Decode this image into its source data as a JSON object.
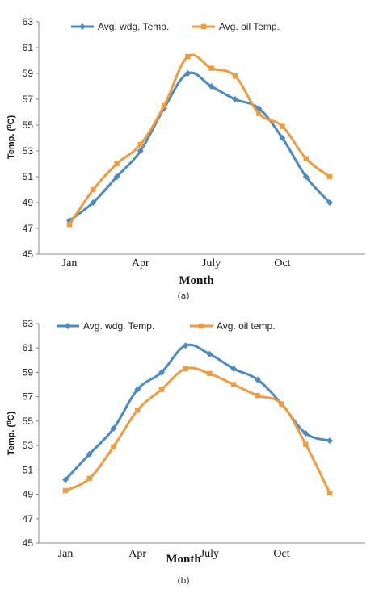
{
  "colors": {
    "wdg": "#4a8bc4",
    "oil": "#f29a3e"
  },
  "chart_data": [
    {
      "type": "line",
      "caption": "(a)",
      "xlabel": "Month",
      "ylabel": "Temp. (⁰C)",
      "ylim": [
        45,
        63
      ],
      "yticks": [
        45,
        47,
        49,
        51,
        53,
        55,
        57,
        59,
        61,
        63
      ],
      "x_tick_labels": [
        "Jan",
        "Apr",
        "July",
        "Oct"
      ],
      "x_tick_positions": [
        1,
        4,
        7,
        10
      ],
      "x": [
        1,
        2,
        3,
        4,
        5,
        6,
        7,
        8,
        9,
        10,
        11,
        12
      ],
      "legend_position": "top",
      "series": [
        {
          "name": "Avg. wdg. Temp.",
          "marker": "diamond",
          "color": "#4a8bc4",
          "values": [
            47.6,
            49.0,
            51.0,
            53.0,
            56.3,
            59.0,
            58.0,
            57.0,
            56.3,
            54.0,
            51.0,
            49.0
          ]
        },
        {
          "name": "Avg. oil Temp.",
          "marker": "square",
          "color": "#f29a3e",
          "values": [
            47.3,
            50.0,
            52.0,
            53.5,
            56.5,
            60.3,
            59.4,
            58.8,
            55.9,
            54.9,
            52.4,
            51.0
          ]
        }
      ]
    },
    {
      "type": "line",
      "caption": "(b)",
      "xlabel": "Month",
      "ylabel": "Temp. (⁰C)",
      "ylim": [
        45,
        63
      ],
      "yticks": [
        45,
        47,
        49,
        51,
        53,
        55,
        57,
        59,
        61,
        63
      ],
      "x_tick_labels": [
        "Jan",
        "Apr",
        "July",
        "Oct"
      ],
      "x_tick_positions": [
        1,
        4,
        7,
        10
      ],
      "x": [
        1,
        2,
        3,
        4,
        5,
        6,
        7,
        8,
        9,
        10,
        11,
        12
      ],
      "legend_position": "top",
      "series": [
        {
          "name": "Avg. wdg. Temp.",
          "marker": "diamond",
          "color": "#4a8bc4",
          "values": [
            50.2,
            52.3,
            54.4,
            57.6,
            59.0,
            61.2,
            60.5,
            59.3,
            58.4,
            56.4,
            54.0,
            53.4
          ]
        },
        {
          "name": "Avg. oil temp.",
          "marker": "square",
          "color": "#f29a3e",
          "values": [
            49.3,
            50.3,
            52.9,
            55.9,
            57.6,
            59.3,
            58.9,
            58.0,
            57.1,
            56.4,
            53.1,
            49.1
          ]
        }
      ]
    }
  ]
}
